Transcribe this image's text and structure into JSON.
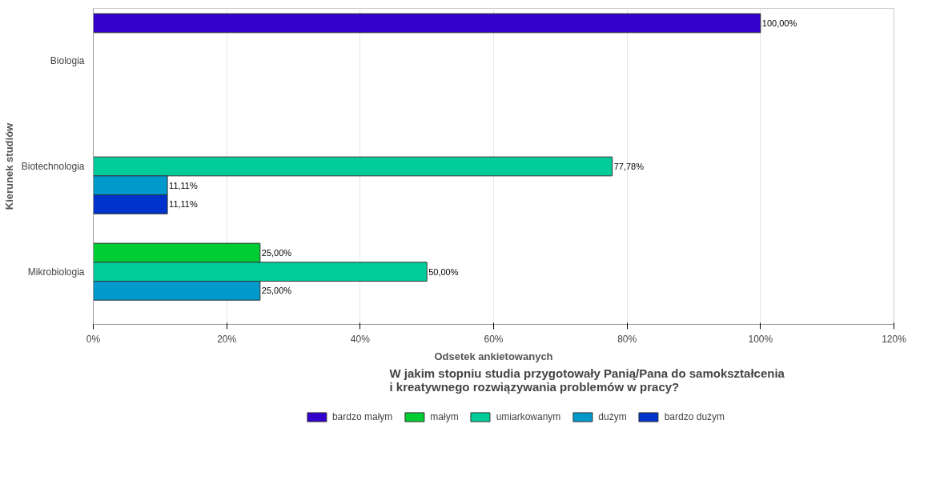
{
  "chart_data": {
    "type": "bar",
    "orientation": "horizontal",
    "xlabel": "Odsetek ankietowanych",
    "ylabel": "Kierunek studiów",
    "legend_title": "W jakim stopniu studia przygotowały Panią/Pana do samokształcenia\ni kreatywnego rozwiązywania problemów w pracy?",
    "categories": [
      "Biologia",
      "Biotechnologia",
      "Mikrobiologia"
    ],
    "series": [
      {
        "name": "bardzo małym",
        "color": "#3300cc",
        "values": [
          100,
          null,
          null
        ],
        "value_labels": [
          "100,00%",
          null,
          null
        ]
      },
      {
        "name": "małym",
        "color": "#00cc33",
        "values": [
          null,
          null,
          25
        ],
        "value_labels": [
          null,
          null,
          "25,00%"
        ]
      },
      {
        "name": "umiarkowanym",
        "color": "#00cc99",
        "values": [
          null,
          77.78,
          50
        ],
        "value_labels": [
          null,
          "77,78%",
          "50,00%"
        ]
      },
      {
        "name": "dużym",
        "color": "#0099cc",
        "values": [
          null,
          11.11,
          25
        ],
        "value_labels": [
          null,
          "11,11%",
          "25,00%"
        ]
      },
      {
        "name": "bardzo dużym",
        "color": "#0033cc",
        "values": [
          null,
          11.11,
          null
        ],
        "value_labels": [
          null,
          "11,11%",
          null
        ]
      }
    ],
    "xlim": [
      0,
      120
    ],
    "xticks": [
      {
        "value": 0,
        "label": "0%"
      },
      {
        "value": 20,
        "label": "20%"
      },
      {
        "value": 40,
        "label": "40%"
      },
      {
        "value": 60,
        "label": "60%"
      },
      {
        "value": 80,
        "label": "80%"
      },
      {
        "value": 100,
        "label": "100%"
      },
      {
        "value": 120,
        "label": "120%"
      }
    ],
    "grid": "x",
    "legend": "bottom"
  }
}
